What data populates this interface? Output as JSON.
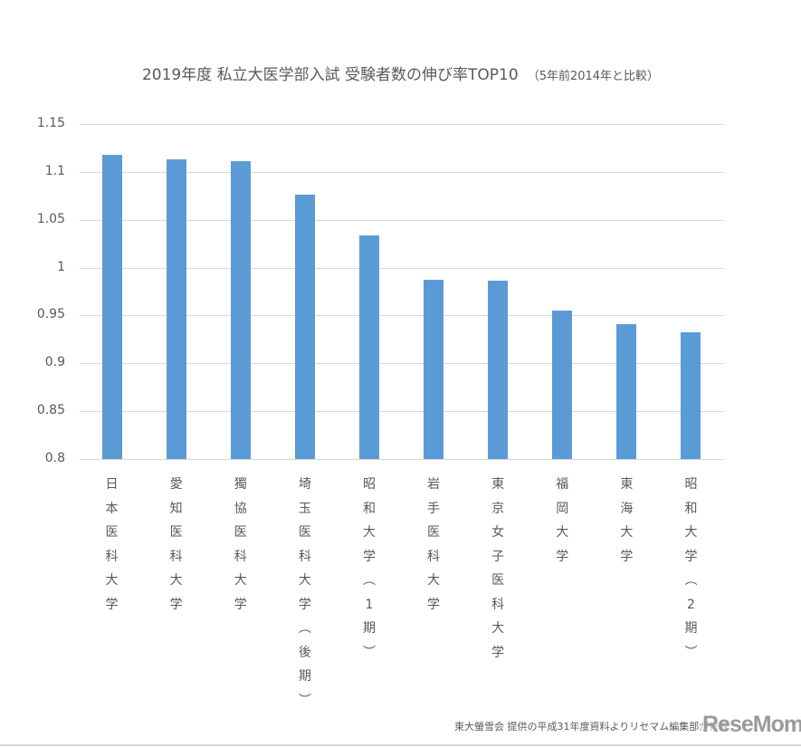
{
  "chart": {
    "title": "2019年度 私立大医学部入試 受験者数の伸び率TOP10",
    "subtitle": "（5年前2014年と比較）"
  },
  "chart_data": {
    "type": "bar",
    "title": "2019年度 私立大医学部入試 受験者数の伸び率TOP10（5年前2014年と比較）",
    "xlabel": "",
    "ylabel": "",
    "ylim": [
      0.8,
      1.15
    ],
    "yticks": [
      "1.15",
      "1.1",
      "1.05",
      "1",
      "0.95",
      "0.9",
      "0.85",
      "0.8"
    ],
    "grid": true,
    "legend": "none",
    "bar_color": "#5b9bd5",
    "categories": [
      "日本医科大学",
      "愛知医科大学",
      "獨協医科大学",
      "埼玉医科大学（後期）",
      "昭和大学（1期）",
      "岩手医科大学",
      "東京女子医科大学",
      "福岡大学",
      "東海大学",
      "昭和大学（2期）"
    ],
    "values": [
      1.118,
      1.113,
      1.111,
      1.076,
      1.034,
      0.987,
      0.986,
      0.955,
      0.941,
      0.932
    ]
  },
  "footer": {
    "credit": "東大螢雪会 提供の平成31年度資料よりリセマム編集部が作成",
    "logo": "ReseMom",
    "logo_dot": "."
  }
}
